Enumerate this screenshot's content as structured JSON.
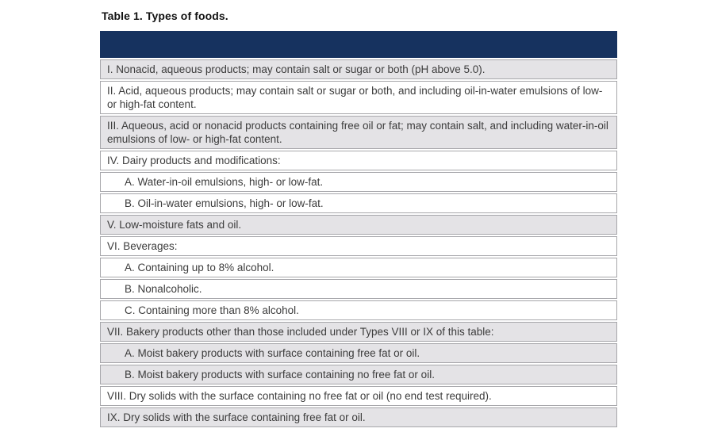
{
  "table": {
    "title": "Table 1. Types of foods.",
    "header": {
      "label": ""
    },
    "colors": {
      "header_navy": "#16325f",
      "row_gray": "#e4e3e6",
      "row_white": "#ffffff",
      "border": "#a6a6aa",
      "text": "#3c3c3c"
    },
    "rows": [
      {
        "text": "I. Nonacid, aqueous products; may contain salt or sugar or both (pH above 5.0).",
        "shade": "gray",
        "indent": false
      },
      {
        "text": "II. Acid, aqueous products; may contain salt or sugar or both, and including oil-in-water emulsions of low- or high-fat content.",
        "shade": "white",
        "indent": false
      },
      {
        "text": "III. Aqueous, acid or nonacid products containing free oil or fat; may contain salt, and including water-in-oil emulsions of low- or high-fat content.",
        "shade": "gray",
        "indent": false
      },
      {
        "text": "IV. Dairy products and modifications:",
        "shade": "white",
        "indent": false
      },
      {
        "text": "A. Water-in-oil emulsions, high- or low-fat.",
        "shade": "white",
        "indent": true
      },
      {
        "text": "B. Oil-in-water emulsions, high- or low-fat.",
        "shade": "white",
        "indent": true
      },
      {
        "text": "V. Low-moisture fats and oil.",
        "shade": "gray",
        "indent": false
      },
      {
        "text": "VI. Beverages:",
        "shade": "white",
        "indent": false
      },
      {
        "text": "A. Containing up to 8% alcohol.",
        "shade": "white",
        "indent": true
      },
      {
        "text": "B. Nonalcoholic.",
        "shade": "white",
        "indent": true
      },
      {
        "text": "C. Containing more than 8% alcohol.",
        "shade": "white",
        "indent": true
      },
      {
        "text": "VII. Bakery products other than those included under Types VIII or IX of this table:",
        "shade": "gray",
        "indent": false
      },
      {
        "text": "A. Moist bakery products with surface containing free fat or oil.",
        "shade": "gray",
        "indent": true
      },
      {
        "text": "B. Moist bakery products with surface containing no free fat or oil.",
        "shade": "gray",
        "indent": true
      },
      {
        "text": "VIII. Dry solids with the surface containing no free fat or oil (no end test required).",
        "shade": "white",
        "indent": false
      },
      {
        "text": "IX. Dry solids with the surface containing free fat or oil.",
        "shade": "gray",
        "indent": false
      }
    ]
  }
}
